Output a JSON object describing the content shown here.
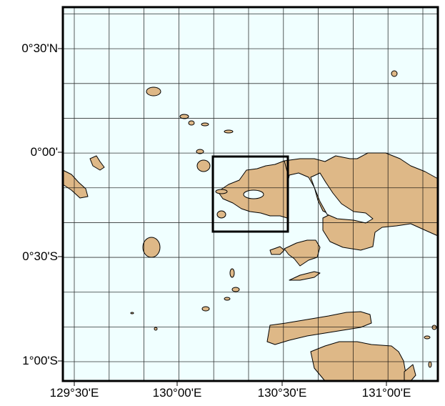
{
  "map": {
    "colors": {
      "ocean": "#f0ffff",
      "land": "#deb887",
      "coastline": "#000000",
      "grid": "#000000"
    },
    "x_labels": [
      "129°30'E",
      "130°00'E",
      "130°30'E",
      "131°00'E"
    ],
    "y_labels": [
      "0°30'N",
      "0°00'",
      "0°30'S",
      "1°00'S"
    ],
    "gridline_interval": "10'",
    "inset_box": "highlighted region rectangle"
  }
}
